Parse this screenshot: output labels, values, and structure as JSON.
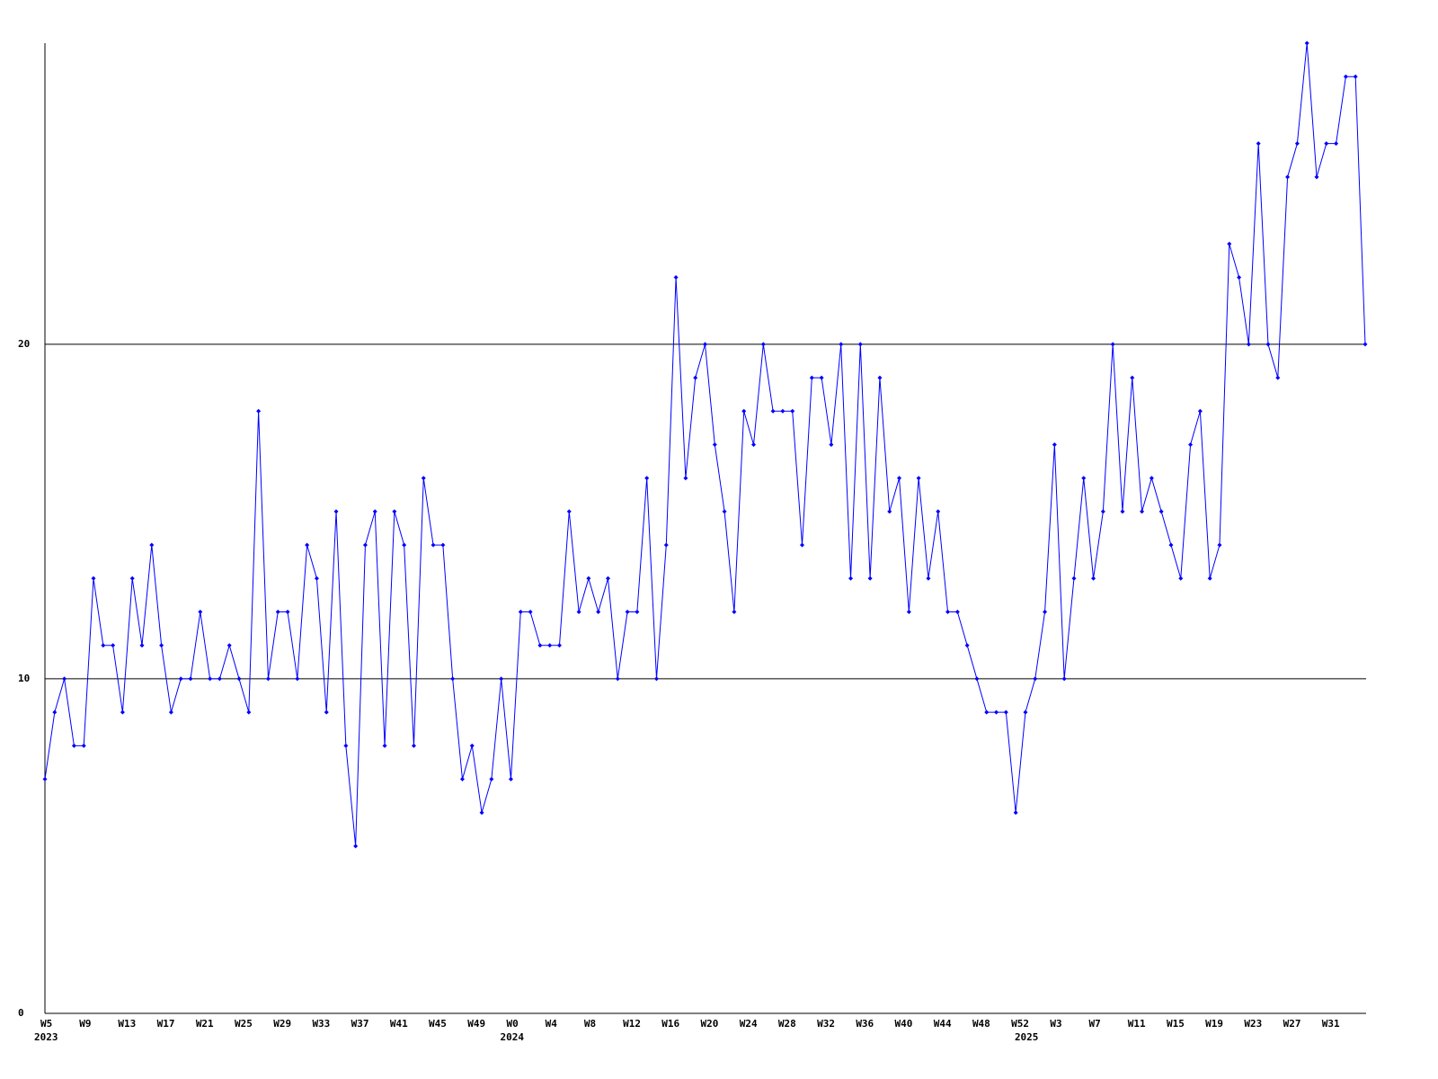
{
  "chart_data": {
    "type": "line",
    "categories": [
      "W5",
      null,
      null,
      null,
      "W9",
      null,
      null,
      null,
      "W13",
      null,
      null,
      null,
      "W17",
      null,
      null,
      null,
      "W21",
      null,
      null,
      null,
      "W25",
      null,
      null,
      null,
      "W29",
      null,
      null,
      null,
      "W33",
      null,
      null,
      null,
      "W37",
      null,
      null,
      null,
      "W41",
      null,
      null,
      null,
      "W45",
      null,
      null,
      null,
      "W49",
      null,
      null,
      null,
      "W0",
      null,
      null,
      null,
      "W4",
      null,
      null,
      null,
      "W8",
      null,
      null,
      null,
      "W12",
      null,
      null,
      null,
      "W16",
      null,
      null,
      null,
      "W20",
      null,
      null,
      null,
      "W24",
      null,
      null,
      null,
      "W28",
      null,
      null,
      null,
      "W32",
      null,
      null,
      null,
      "W36",
      null,
      null,
      null,
      "W40",
      null,
      null,
      null,
      "W44",
      null,
      null,
      null,
      "W48",
      null,
      null,
      null,
      "W52",
      null,
      null,
      null,
      "W3",
      null,
      null,
      null,
      "W7",
      null,
      null,
      null,
      "W11",
      null,
      null,
      null,
      "W15",
      null,
      null,
      null,
      "W19",
      null,
      null,
      null,
      "W23",
      null,
      null,
      null,
      "W27",
      null,
      null,
      null,
      "W31",
      null,
      null,
      null,
      null
    ],
    "x_group_labels": [
      "2023",
      null,
      null,
      null,
      null,
      null,
      null,
      null,
      null,
      null,
      null,
      null,
      null,
      null,
      null,
      null,
      null,
      null,
      null,
      null,
      null,
      null,
      null,
      null,
      null,
      null,
      null,
      null,
      null,
      null,
      null,
      null,
      null,
      null,
      null,
      null,
      null,
      null,
      null,
      null,
      null,
      null,
      null,
      null,
      null,
      null,
      null,
      null,
      "2024",
      null,
      null,
      null,
      null,
      null,
      null,
      null,
      null,
      null,
      null,
      null,
      null,
      null,
      null,
      null,
      null,
      null,
      null,
      null,
      null,
      null,
      null,
      null,
      null,
      null,
      null,
      null,
      null,
      null,
      null,
      null,
      null,
      null,
      null,
      null,
      null,
      null,
      null,
      null,
      null,
      null,
      null,
      null,
      null,
      null,
      null,
      null,
      null,
      null,
      null,
      null,
      null,
      "2025",
      null,
      null,
      null,
      null,
      null,
      null,
      null,
      null,
      null,
      null,
      null,
      null,
      null,
      null,
      null,
      null,
      null,
      null,
      null,
      null,
      null,
      null,
      null,
      null,
      null,
      null,
      null,
      null,
      null,
      null,
      null,
      null,
      null,
      null,
      null
    ],
    "series": [
      {
        "color": "#0000ff",
        "values": [
          7,
          9,
          10,
          8,
          8,
          13,
          11,
          11,
          9,
          13,
          11,
          14,
          11,
          9,
          10,
          10,
          12,
          10,
          10,
          11,
          10,
          9,
          18,
          10,
          12,
          12,
          10,
          14,
          13,
          9,
          15,
          8,
          5,
          14,
          15,
          8,
          15,
          14,
          8,
          16,
          14,
          14,
          10,
          7,
          8,
          6,
          7,
          10,
          7,
          12,
          12,
          11,
          11,
          11,
          15,
          12,
          13,
          12,
          13,
          10,
          12,
          12,
          16,
          10,
          14,
          22,
          16,
          19,
          20,
          17,
          15,
          12,
          18,
          17,
          20,
          18,
          18,
          18,
          14,
          19,
          19,
          17,
          20,
          13,
          20,
          13,
          19,
          15,
          16,
          12,
          16,
          13,
          15,
          12,
          12,
          11,
          10,
          9,
          9,
          9,
          6,
          9,
          10,
          12,
          17,
          10,
          13,
          16,
          13,
          15,
          20,
          15,
          19,
          15,
          16,
          15,
          14,
          13,
          17,
          18,
          13,
          14,
          23,
          22,
          20,
          26,
          20,
          19,
          25,
          26,
          29,
          25,
          26,
          26,
          28,
          28,
          20
        ]
      }
    ],
    "ylim": [
      0,
      29
    ],
    "yticks": [
      0,
      10,
      20
    ],
    "grid": true
  }
}
